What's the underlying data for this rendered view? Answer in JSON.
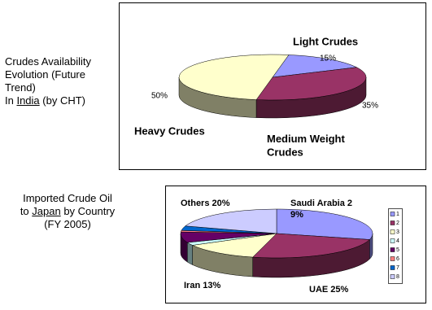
{
  "chart_data": [
    {
      "type": "pie",
      "title_lines": [
        [
          "Crudes Availability"
        ],
        [
          "Evolution (Future"
        ],
        [
          "Trend)"
        ],
        [
          "In ",
          "India",
          " (by CHT)"
        ]
      ],
      "categories": [
        "Light Crudes",
        "Medium Weight Crudes",
        "Heavy Crudes"
      ],
      "values": [
        15,
        35,
        50
      ],
      "value_labels": [
        "15%",
        "35%",
        "50%"
      ],
      "colors": [
        "#9999ff",
        "#993366",
        "#ffffcc"
      ]
    },
    {
      "type": "pie",
      "title_lines": [
        [
          "Imported Crude Oil"
        ],
        [
          "to ",
          "Japan",
          " by Country"
        ],
        [
          "(FY 2005)"
        ]
      ],
      "categories": [
        "1",
        "2",
        "3",
        "4",
        "5",
        "6",
        "7",
        "8"
      ],
      "values": [
        29,
        25,
        13,
        2,
        7,
        1,
        3,
        20
      ],
      "value_labels": [
        "Saudi Arabia 2 9%",
        "UAE 25%",
        "Iran 13%",
        null,
        null,
        null,
        null,
        "Others 20%"
      ],
      "colors": [
        "#9999ff",
        "#993366",
        "#ffffcc",
        "#ccffff",
        "#660066",
        "#ff8080",
        "#0066cc",
        "#ccccff"
      ],
      "legend": true
    }
  ]
}
